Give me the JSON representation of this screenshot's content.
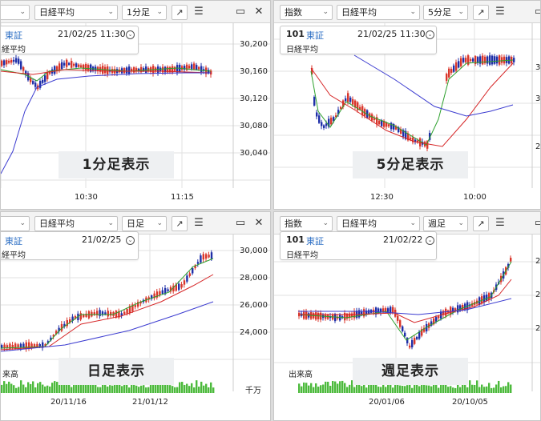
{
  "colors": {
    "up": "#d9362b",
    "down": "#1f2fa8",
    "ma_short": "#2ca02c",
    "ma_mid": "#d62728",
    "ma_long": "#3b3bd0",
    "volume": "#4cba3c",
    "grid": "#e2e2e2",
    "caption_bg": "#eef0f2",
    "market": "#2d6fc4"
  },
  "panels": [
    {
      "id": "p1",
      "toolbar": {
        "type_label": "",
        "index_label": "日経平均",
        "period_label": "1分足"
      },
      "info": {
        "code": "",
        "market": "東証",
        "date": "21/02/25 11:30",
        "name": "経平均"
      },
      "caption": "1分足表示",
      "y_ticks": [
        "30,200",
        "30,160",
        "30,120",
        "30,080",
        "30,040"
      ],
      "x_ticks": [
        "10:30",
        "11:15"
      ],
      "volume_label": "",
      "unit_label": ""
    },
    {
      "id": "p2",
      "toolbar": {
        "type_label": "指数",
        "index_label": "日経平均",
        "period_label": "5分足"
      },
      "info": {
        "code": "101",
        "market": "東証",
        "date": "21/02/25 11:30",
        "name": "日経平均"
      },
      "caption": "5分足表示",
      "y_ticks": [
        "3",
        "3",
        "2"
      ],
      "x_ticks": [
        "12:30",
        "10:00"
      ],
      "volume_label": "",
      "unit_label": ""
    },
    {
      "id": "p3",
      "toolbar": {
        "type_label": "",
        "index_label": "日経平均",
        "period_label": "日足"
      },
      "info": {
        "code": "",
        "market": "東証",
        "date": "21/02/25",
        "name": "経平均"
      },
      "caption": "日足表示",
      "y_ticks": [
        "30,000",
        "28,000",
        "26,000",
        "24,000"
      ],
      "x_ticks": [
        "20/11/16",
        "21/01/12"
      ],
      "volume_label": "来高",
      "unit_label": "千万"
    },
    {
      "id": "p4",
      "toolbar": {
        "type_label": "指数",
        "index_label": "日経平均",
        "period_label": "週足"
      },
      "info": {
        "code": "101",
        "market": "東証",
        "date": "21/02/22",
        "name": "日経平均"
      },
      "caption": "週足表示",
      "y_ticks": [
        "2",
        "2",
        "2"
      ],
      "x_ticks": [
        "20/01/06",
        "20/10/05"
      ],
      "volume_label": "出来高",
      "unit_label": ""
    }
  ],
  "icons": {
    "expand": "expand-icon",
    "menu": "menu-icon",
    "window": "window-icon",
    "close": "close-icon"
  }
}
